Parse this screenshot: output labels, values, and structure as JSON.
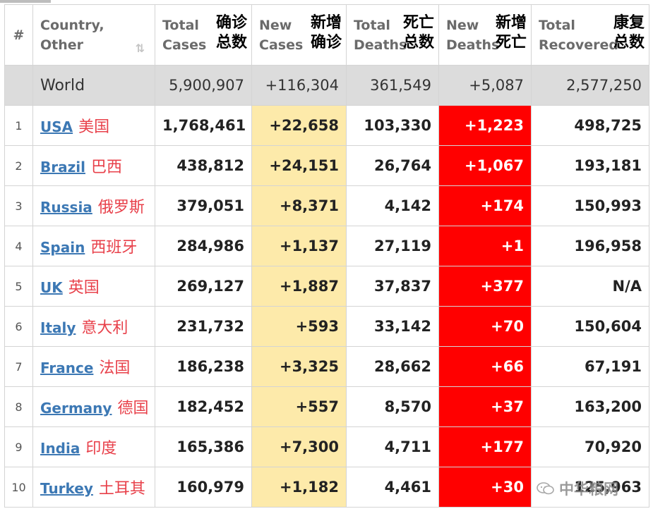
{
  "header": {
    "index": "#",
    "country": "Country,\nOther",
    "total_cases_en": "Total\nCases",
    "total_cases_zh": "确诊\n总数",
    "new_cases_en": "New\nCases",
    "new_cases_zh": "新增\n确诊",
    "total_deaths_en": "Total\nDeaths",
    "total_deaths_zh": "死亡\n总数",
    "new_deaths_en": "New\nDeaths",
    "new_deaths_zh": "新增\n死亡",
    "total_recovered_en": "Total\nRecovered",
    "total_recovered_zh": "康复\n总数"
  },
  "world": {
    "name": "World",
    "total_cases": "5,900,907",
    "new_cases": "+116,304",
    "total_deaths": "361,549",
    "new_deaths": "+5,087",
    "total_recovered": "2,577,250"
  },
  "rows": [
    {
      "idx": "1",
      "country": "USA",
      "country_zh": "美国",
      "total_cases": "1,768,461",
      "new_cases": "+22,658",
      "total_deaths": "103,330",
      "new_deaths": "+1,223",
      "total_recovered": "498,725"
    },
    {
      "idx": "2",
      "country": "Brazil",
      "country_zh": "巴西",
      "total_cases": "438,812",
      "new_cases": "+24,151",
      "total_deaths": "26,764",
      "new_deaths": "+1,067",
      "total_recovered": "193,181"
    },
    {
      "idx": "3",
      "country": "Russia",
      "country_zh": "俄罗斯",
      "total_cases": "379,051",
      "new_cases": "+8,371",
      "total_deaths": "4,142",
      "new_deaths": "+174",
      "total_recovered": "150,993"
    },
    {
      "idx": "4",
      "country": "Spain",
      "country_zh": "西班牙",
      "total_cases": "284,986",
      "new_cases": "+1,137",
      "total_deaths": "27,119",
      "new_deaths": "+1",
      "total_recovered": "196,958"
    },
    {
      "idx": "5",
      "country": "UK",
      "country_zh": "英国",
      "total_cases": "269,127",
      "new_cases": "+1,887",
      "total_deaths": "37,837",
      "new_deaths": "+377",
      "total_recovered": "N/A"
    },
    {
      "idx": "6",
      "country": "Italy",
      "country_zh": "意大利",
      "total_cases": "231,732",
      "new_cases": "+593",
      "total_deaths": "33,142",
      "new_deaths": "+70",
      "total_recovered": "150,604"
    },
    {
      "idx": "7",
      "country": "France",
      "country_zh": "法国",
      "total_cases": "186,238",
      "new_cases": "+3,325",
      "total_deaths": "28,662",
      "new_deaths": "+66",
      "total_recovered": "67,191"
    },
    {
      "idx": "8",
      "country": "Germany",
      "country_zh": "德国",
      "total_cases": "182,452",
      "new_cases": "+557",
      "total_deaths": "8,570",
      "new_deaths": "+37",
      "total_recovered": "163,200"
    },
    {
      "idx": "9",
      "country": "India",
      "country_zh": "印度",
      "total_cases": "165,386",
      "new_cases": "+7,300",
      "total_deaths": "4,711",
      "new_deaths": "+177",
      "total_recovered": "70,920"
    },
    {
      "idx": "10",
      "country": "Turkey",
      "country_zh": "土耳其",
      "total_cases": "160,979",
      "new_cases": "+1,182",
      "total_deaths": "4,461",
      "new_deaths": "+30",
      "total_recovered": "125,963"
    }
  ],
  "watermark": "中华粮网",
  "colors": {
    "new_cases_bg": "#fdeaaa",
    "new_deaths_bg": "#ff0000",
    "world_row_bg": "#dcdcdc",
    "country_link": "#3c78b4",
    "country_zh": "#e8404a"
  }
}
